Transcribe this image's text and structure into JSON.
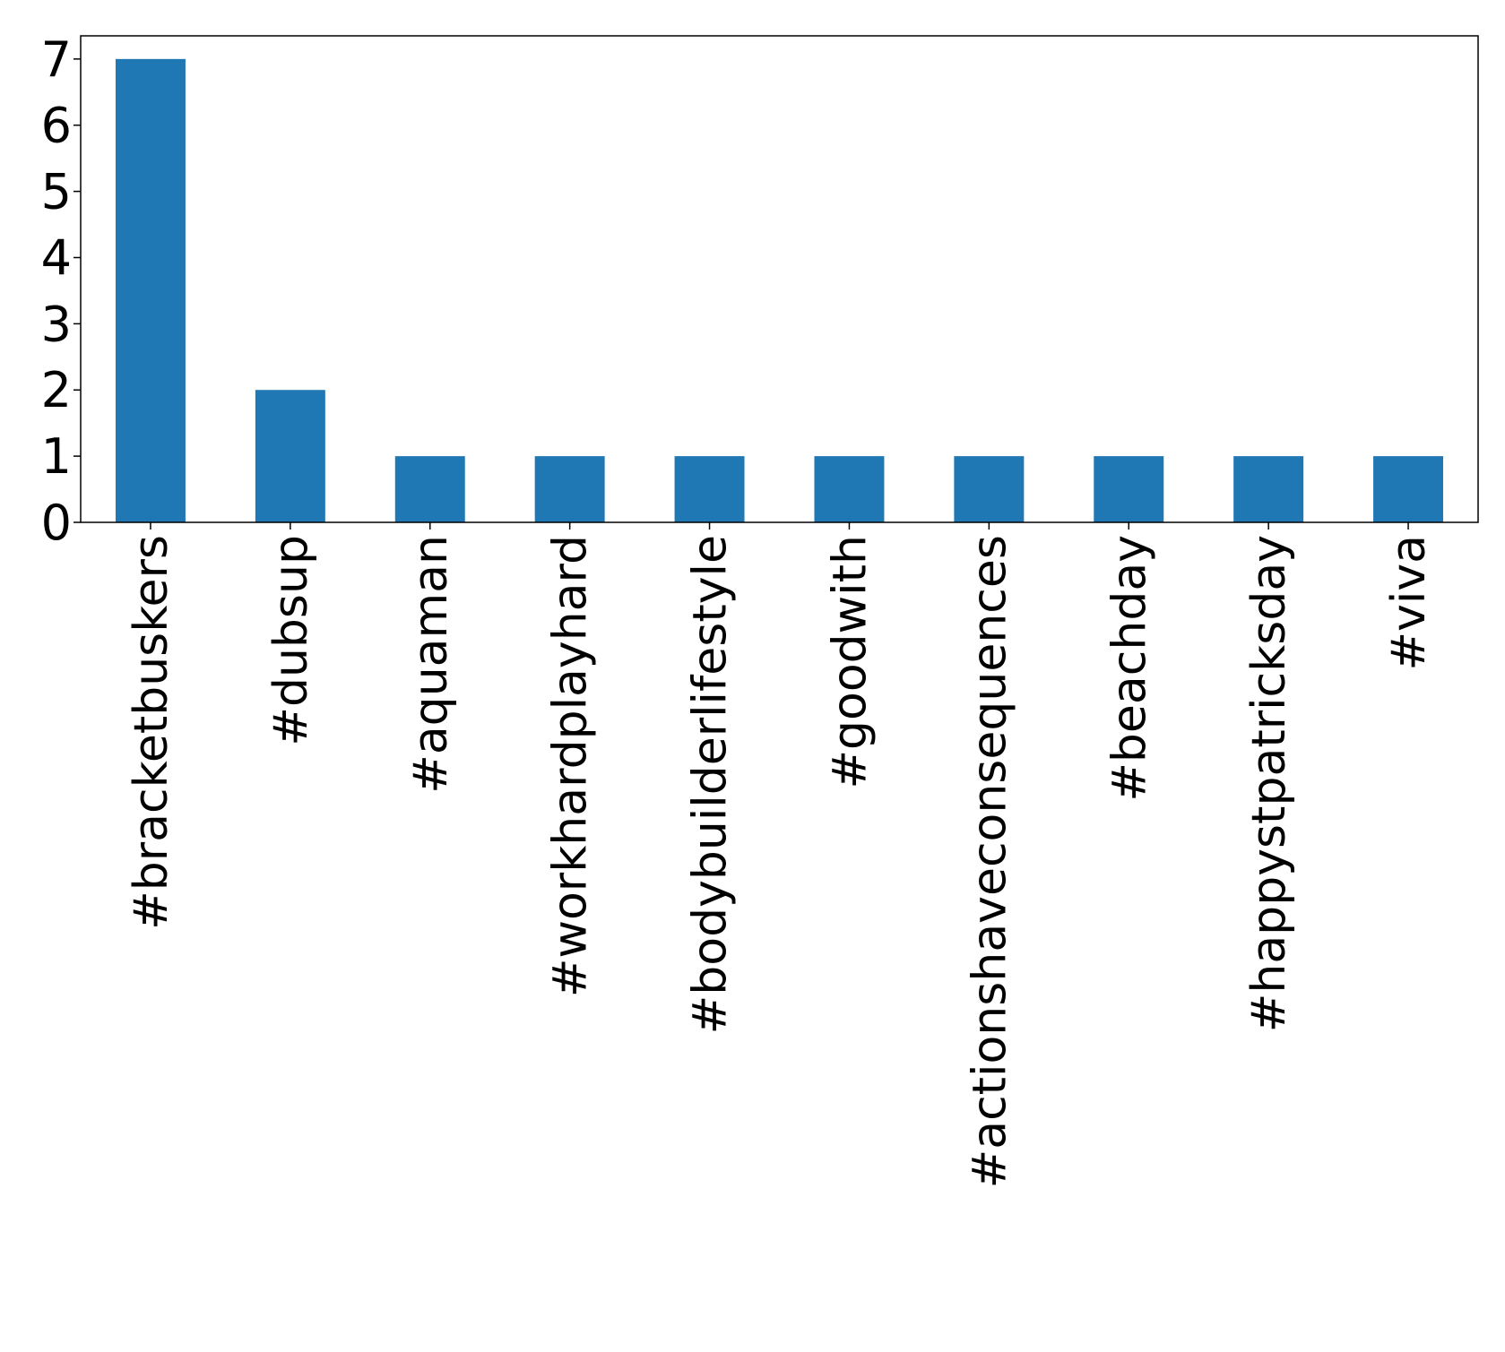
{
  "chart_data": {
    "type": "bar",
    "title": "",
    "xlabel": "",
    "ylabel": "",
    "categories": [
      "#bracketbuskers",
      "#dubsup",
      "#aquaman",
      "#workhardplayhard",
      "#bodybuilderlifestyle",
      "#goodwith",
      "#actionshaveconsequences",
      "#beachday",
      "#happystpatricksday",
      "#viva"
    ],
    "values": [
      7,
      2,
      1,
      1,
      1,
      1,
      1,
      1,
      1,
      1
    ],
    "ylim": [
      0,
      7.35
    ],
    "yticks": [
      "0",
      "1",
      "2",
      "3",
      "4",
      "5",
      "6",
      "7"
    ],
    "bar_color": "#1f77b4",
    "grid": false,
    "legend": "none"
  }
}
